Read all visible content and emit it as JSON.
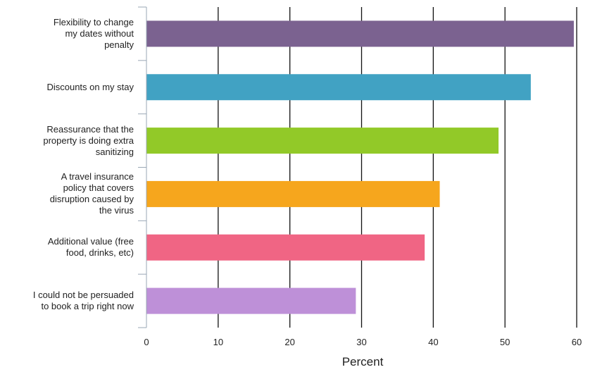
{
  "chart_data": {
    "type": "bar",
    "orientation": "horizontal",
    "categories": [
      "Flexibility to change my dates without penalty",
      "Discounts on my stay",
      "Reassurance that the property is doing extra sanitizing",
      "A travel insurance policy that covers disruption caused by the virus",
      "Additional value (free food, drinks, etc)",
      "I could not be persuaded to book a trip right now"
    ],
    "category_lines": [
      [
        "Flexibility to change",
        "my dates without",
        "penalty"
      ],
      [
        "Discounts on my stay"
      ],
      [
        "Reassurance that the",
        "property is doing extra",
        "sanitizing"
      ],
      [
        "A travel insurance",
        "policy that covers",
        "disruption caused by",
        "the virus"
      ],
      [
        "Additional value (free",
        "food, drinks, etc)"
      ],
      [
        "I could not be persuaded",
        "to book a trip right now"
      ]
    ],
    "values": [
      59.6,
      53.6,
      49.1,
      40.9,
      38.8,
      29.2
    ],
    "colors": [
      "#7b6290",
      "#41a2c3",
      "#92c928",
      "#f6a61d",
      "#f06584",
      "#be90d8"
    ],
    "xlabel": "Percent",
    "ylabel": "",
    "title": "",
    "xlim": [
      0,
      60
    ],
    "xticks": [
      0,
      10,
      20,
      30,
      40,
      50,
      60
    ],
    "grid": "vertical",
    "legend": "none"
  }
}
